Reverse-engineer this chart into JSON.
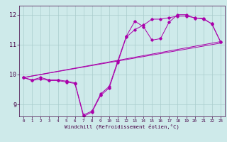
{
  "xlabel": "Windchill (Refroidissement éolien,°C)",
  "background_color": "#ceeaea",
  "grid_color": "#aacccc",
  "line_color": "#aa00aa",
  "x_ticks": [
    0,
    1,
    2,
    3,
    4,
    5,
    6,
    7,
    8,
    9,
    10,
    11,
    12,
    13,
    14,
    15,
    16,
    17,
    18,
    19,
    20,
    21,
    22,
    23
  ],
  "ylim": [
    8.6,
    12.3
  ],
  "xlim": [
    -0.5,
    23.5
  ],
  "yticks": [
    9,
    10,
    11,
    12
  ],
  "series1": [
    9.9,
    9.8,
    9.85,
    9.8,
    9.8,
    9.75,
    9.7,
    8.6,
    8.75,
    9.3,
    9.55,
    10.4,
    11.25,
    11.5,
    11.65,
    11.85,
    11.85,
    11.9,
    11.95,
    11.95,
    11.9,
    11.85,
    11.7,
    11.1
  ],
  "series2": [
    9.9,
    9.82,
    9.9,
    9.82,
    9.82,
    9.78,
    9.72,
    8.65,
    8.78,
    9.35,
    9.6,
    10.45,
    11.28,
    11.78,
    11.6,
    11.15,
    11.2,
    11.75,
    12.0,
    12.0,
    11.88,
    11.88,
    11.68,
    11.1
  ],
  "series3_straight": [
    [
      0,
      9.9
    ],
    [
      23,
      11.1
    ]
  ],
  "series4_straight": [
    [
      0,
      9.9
    ],
    [
      23,
      11.05
    ]
  ]
}
